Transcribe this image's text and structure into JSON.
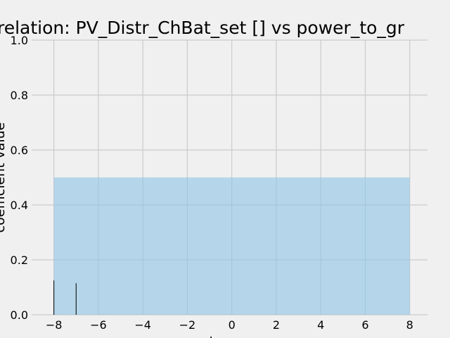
{
  "chart_data": {
    "type": "bar",
    "title": "relation: PV_Distr_ChBat_set [] vs power_to_gr",
    "x_label": "lag",
    "y_label": "coefficient value",
    "x": [
      -8,
      -7
    ],
    "values": [
      0.125,
      0.115
    ],
    "color": "#000000",
    "band": {
      "x": [
        -8,
        8
      ],
      "value": 0.5,
      "color": "#8ec4e6"
    },
    "xlim": [
      -9,
      8.8
    ],
    "ylim": [
      0,
      1
    ],
    "xticks": [
      -8,
      -6,
      -4,
      -2,
      0,
      2,
      4,
      6,
      8
    ],
    "yticks": [
      0.0,
      0.2,
      0.4,
      0.6,
      0.8,
      1.0
    ],
    "grid": true
  }
}
